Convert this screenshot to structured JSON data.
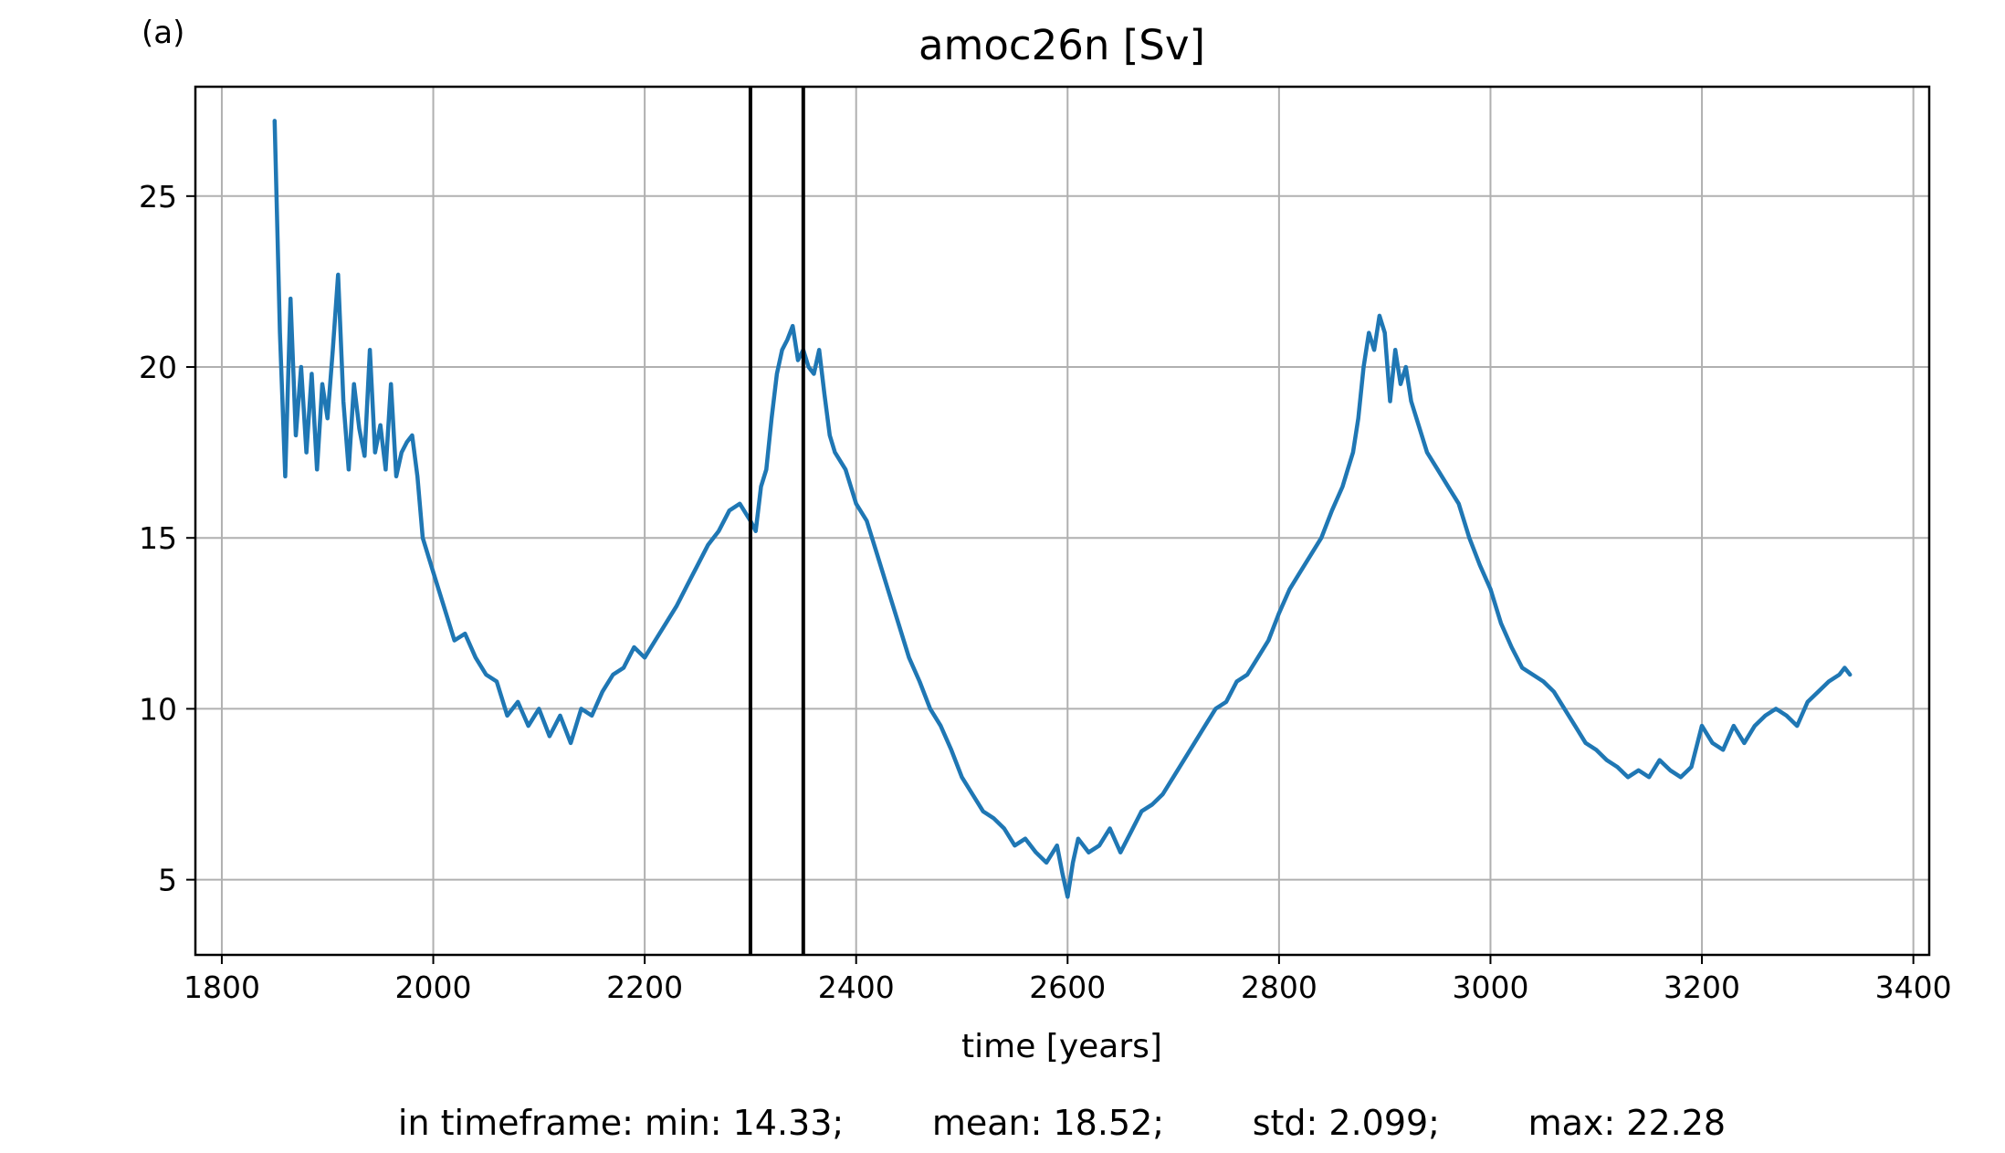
{
  "chart_data": {
    "type": "line",
    "panel_label": "(a)",
    "title": "amoc26n [Sv]",
    "xlabel": "time [years]",
    "ylabel": "",
    "xlim": [
      1775,
      3415
    ],
    "ylim": [
      2.8,
      28.2
    ],
    "xticks": [
      1800,
      2000,
      2200,
      2400,
      2600,
      2800,
      3000,
      3200,
      3400
    ],
    "yticks": [
      5,
      10,
      15,
      20,
      25
    ],
    "grid": true,
    "line_color": "#1f77b4",
    "marker_color": "#000000",
    "vertical_markers": [
      2300,
      2350
    ],
    "stats_text": "in timeframe: min: 14.33;        mean: 18.52;        std: 2.099;        max: 22.28",
    "series": [
      {
        "x": [
          1850,
          1855,
          1860,
          1865,
          1870,
          1875,
          1880,
          1885,
          1890,
          1895,
          1900,
          1905,
          1910,
          1915,
          1920,
          1925,
          1930,
          1935,
          1940,
          1945,
          1950,
          1955,
          1960,
          1965,
          1970,
          1975,
          1980,
          1985,
          1990,
          2000,
          2010,
          2020,
          2030,
          2040,
          2050,
          2060,
          2070,
          2080,
          2090,
          2100,
          2110,
          2120,
          2130,
          2140,
          2150,
          2160,
          2170,
          2180,
          2190,
          2200,
          2210,
          2220,
          2230,
          2240,
          2250,
          2260,
          2270,
          2280,
          2290,
          2300,
          2305,
          2310,
          2315,
          2320,
          2325,
          2330,
          2335,
          2340,
          2345,
          2350,
          2355,
          2360,
          2365,
          2370,
          2375,
          2380,
          2390,
          2400,
          2410,
          2420,
          2430,
          2440,
          2450,
          2460,
          2470,
          2480,
          2490,
          2500,
          2510,
          2520,
          2530,
          2540,
          2550,
          2560,
          2570,
          2580,
          2590,
          2595,
          2600,
          2605,
          2610,
          2620,
          2630,
          2640,
          2650,
          2660,
          2670,
          2680,
          2690,
          2700,
          2710,
          2720,
          2730,
          2740,
          2750,
          2760,
          2770,
          2780,
          2790,
          2800,
          2810,
          2820,
          2830,
          2840,
          2850,
          2860,
          2865,
          2870,
          2875,
          2880,
          2885,
          2890,
          2895,
          2900,
          2905,
          2910,
          2915,
          2920,
          2925,
          2930,
          2940,
          2950,
          2960,
          2970,
          2980,
          2990,
          3000,
          3010,
          3020,
          3030,
          3040,
          3050,
          3060,
          3070,
          3080,
          3090,
          3100,
          3110,
          3120,
          3130,
          3140,
          3150,
          3160,
          3170,
          3180,
          3190,
          3200,
          3210,
          3220,
          3230,
          3240,
          3250,
          3260,
          3270,
          3280,
          3290,
          3300,
          3310,
          3320,
          3330,
          3335,
          3340
        ],
        "y": [
          27.2,
          21.0,
          16.8,
          22.0,
          18.0,
          20.0,
          17.5,
          19.8,
          17.0,
          19.5,
          18.5,
          20.5,
          22.7,
          19.0,
          17.0,
          19.5,
          18.2,
          17.4,
          20.5,
          17.5,
          18.3,
          17.0,
          19.5,
          16.8,
          17.5,
          17.8,
          18.0,
          16.8,
          15.0,
          14.0,
          13.0,
          12.0,
          12.2,
          11.5,
          11.0,
          10.8,
          9.8,
          10.2,
          9.5,
          10.0,
          9.2,
          9.8,
          9.0,
          10.0,
          9.8,
          10.5,
          11.0,
          11.2,
          11.8,
          11.5,
          12.0,
          12.5,
          13.0,
          13.6,
          14.2,
          14.8,
          15.2,
          15.8,
          16.0,
          15.5,
          15.2,
          16.5,
          17.0,
          18.5,
          19.8,
          20.5,
          20.8,
          21.2,
          20.2,
          20.5,
          20.0,
          19.8,
          20.5,
          19.2,
          18.0,
          17.5,
          17.0,
          16.0,
          15.5,
          14.5,
          13.5,
          12.5,
          11.5,
          10.8,
          10.0,
          9.5,
          8.8,
          8.0,
          7.5,
          7.0,
          6.8,
          6.5,
          6.0,
          6.2,
          5.8,
          5.5,
          6.0,
          5.2,
          4.5,
          5.5,
          6.2,
          5.8,
          6.0,
          6.5,
          5.8,
          6.4,
          7.0,
          7.2,
          7.5,
          8.0,
          8.5,
          9.0,
          9.5,
          10.0,
          10.2,
          10.8,
          11.0,
          11.5,
          12.0,
          12.8,
          13.5,
          14.0,
          14.5,
          15.0,
          15.8,
          16.5,
          17.0,
          17.5,
          18.5,
          20.0,
          21.0,
          20.5,
          21.5,
          21.0,
          19.0,
          20.5,
          19.5,
          20.0,
          19.0,
          18.5,
          17.5,
          17.0,
          16.5,
          16.0,
          15.0,
          14.2,
          13.5,
          12.5,
          11.8,
          11.2,
          11.0,
          10.8,
          10.5,
          10.0,
          9.5,
          9.0,
          8.8,
          8.5,
          8.3,
          8.0,
          8.2,
          8.0,
          8.5,
          8.2,
          8.0,
          8.3,
          9.5,
          9.0,
          8.8,
          9.5,
          9.0,
          9.5,
          9.8,
          10.0,
          9.8,
          9.5,
          10.2,
          10.5,
          10.8,
          11.0,
          11.2,
          11.0
        ]
      }
    ]
  }
}
